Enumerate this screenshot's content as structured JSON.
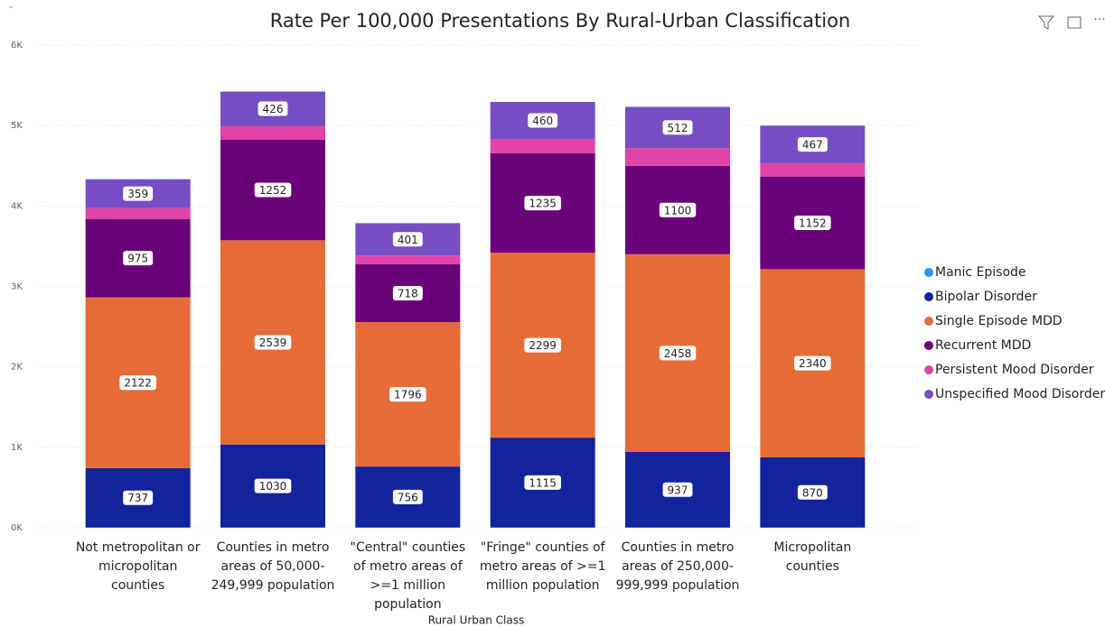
{
  "chart_data": {
    "type": "stacked_bar",
    "title": "Rate Per 100,000 Presentations By Rural-Urban Classification",
    "x_label": "Rural Urban Class",
    "categories": [
      "Not metropolitan or micropolitan counties",
      "Counties in metro areas of 50,000-249,999 population",
      "\"Central\" counties of metro areas of >=1 million population",
      "\"Fringe\" counties of metro areas of >=1 million population",
      "Counties in metro areas of 250,000-999,999 population",
      "Micropolitan counties"
    ],
    "series": [
      {
        "name": "Manic Episode",
        "color": "#1aa0e8",
        "values": [
          5,
          5,
          5,
          5,
          5,
          5
        ]
      },
      {
        "name": "Bipolar Disorder",
        "color": "#12239e",
        "values": [
          737,
          1030,
          756,
          1115,
          937,
          870
        ]
      },
      {
        "name": "Single Episode MDD",
        "color": "#e66c37",
        "values": [
          2122,
          2539,
          1796,
          2299,
          2458,
          2340
        ]
      },
      {
        "name": "Recurrent MDD",
        "color": "#6b007b",
        "values": [
          975,
          1252,
          718,
          1235,
          1100,
          1152
        ]
      },
      {
        "name": "Persistent Mood Disorder",
        "color": "#e044a7",
        "values": [
          135,
          170,
          110,
          180,
          220,
          165
        ]
      },
      {
        "name": "Unspecified Mood Disorder",
        "color": "#744ec2",
        "values": [
          359,
          426,
          401,
          460,
          512,
          467
        ]
      }
    ],
    "ylim": [
      0,
      6000
    ],
    "yticks": [
      {
        "value": 0,
        "label": "0K"
      },
      {
        "value": 1000,
        "label": "1K"
      },
      {
        "value": 2000,
        "label": "2K"
      },
      {
        "value": 3000,
        "label": "3K"
      },
      {
        "value": 4000,
        "label": "4K"
      },
      {
        "value": 5000,
        "label": "5K"
      },
      {
        "value": 6000,
        "label": "6K"
      }
    ],
    "grid": true,
    "legend": "right"
  }
}
